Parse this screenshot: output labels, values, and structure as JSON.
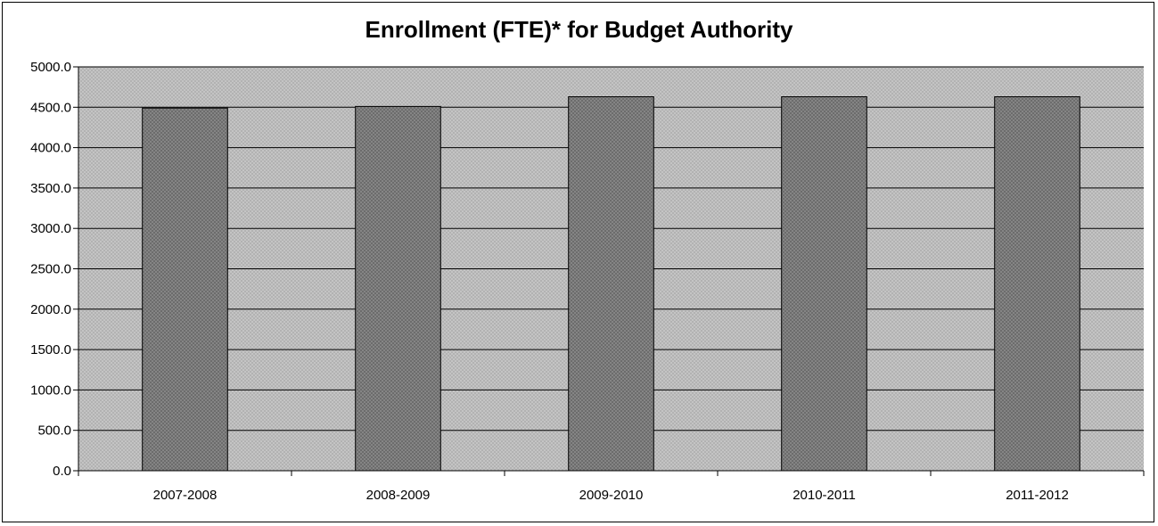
{
  "chart_data": {
    "type": "bar",
    "title": "Enrollment (FTE)* for Budget Authority",
    "xlabel": "",
    "ylabel": "",
    "categories": [
      "2007-2008",
      "2008-2009",
      "2009-2010",
      "2010-2011",
      "2011-2012"
    ],
    "values": [
      4490,
      4510,
      4630,
      4630,
      4630
    ],
    "ylim": [
      0,
      5000
    ],
    "yticks": [
      "0.0",
      "500.0",
      "1000.0",
      "1500.0",
      "2000.0",
      "2500.0",
      "3000.0",
      "3500.0",
      "4000.0",
      "4500.0",
      "5000.0"
    ],
    "grid": true,
    "legend": "none",
    "colors": {
      "plot_background": "#b9b9b9",
      "bar_fill": "#7a7a7a",
      "gridline": "#000000"
    }
  }
}
